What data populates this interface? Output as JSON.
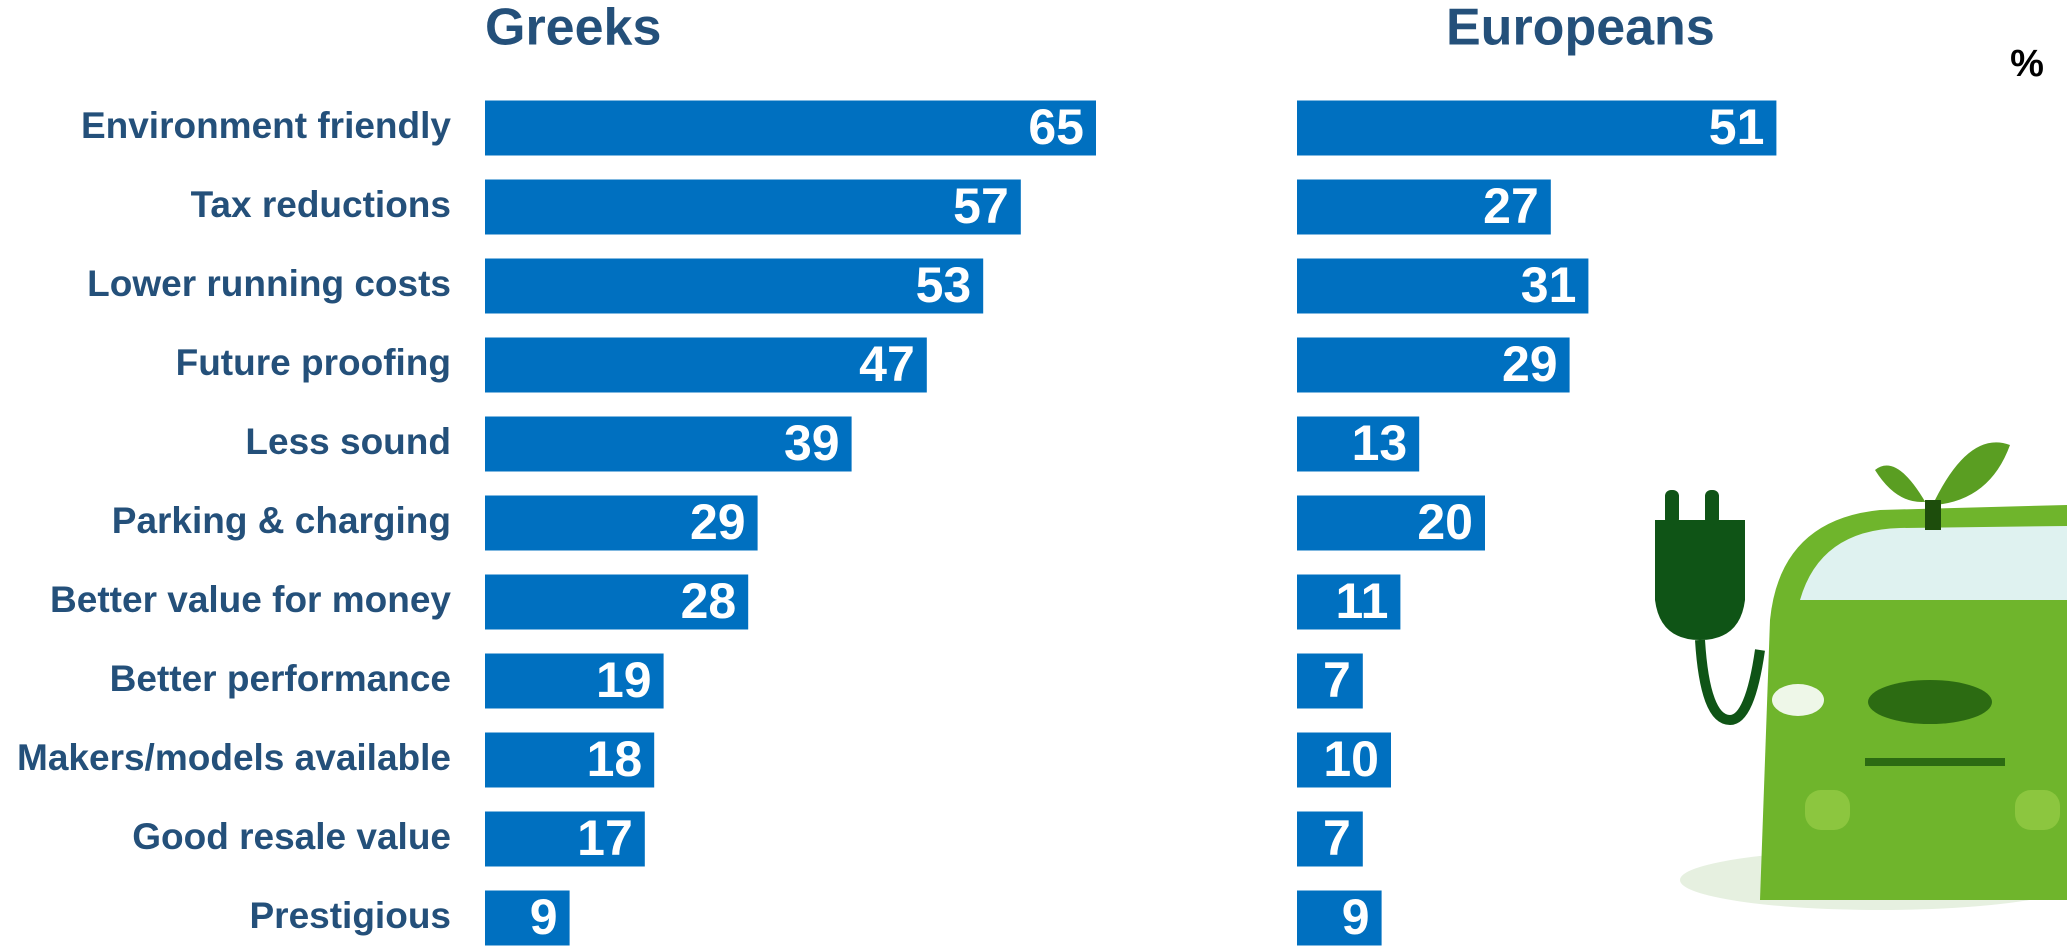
{
  "unit": "%",
  "chart_data": [
    {
      "type": "bar",
      "orientation": "horizontal",
      "title": "Greeks",
      "color": "#0070c0",
      "categories": [
        "Environment friendly",
        "Tax reductions",
        "Lower running costs",
        "Future proofing",
        "Less sound",
        "Parking & charging",
        "Better value for money",
        "Better performance",
        "Makers/models available",
        "Good resale value",
        "Prestigious"
      ],
      "values": [
        65,
        57,
        53,
        47,
        39,
        29,
        28,
        19,
        18,
        17,
        9
      ]
    },
    {
      "type": "bar",
      "orientation": "horizontal",
      "title": "Europeans",
      "color": "#0070c0",
      "values": [
        51,
        27,
        31,
        29,
        13,
        20,
        11,
        7,
        10,
        7,
        9
      ]
    }
  ]
}
